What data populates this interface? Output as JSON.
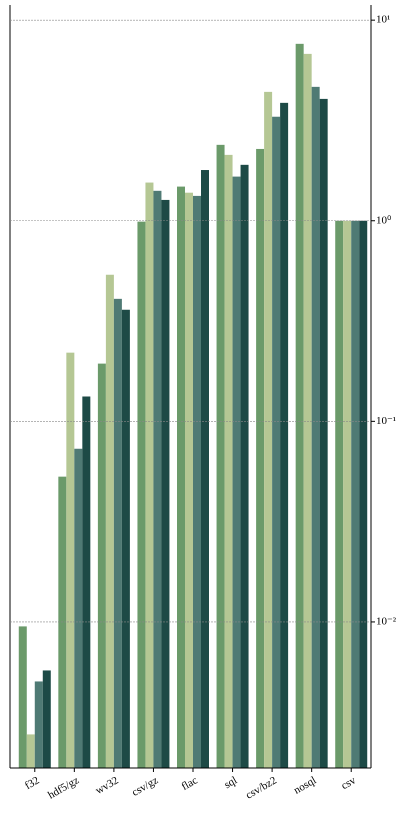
{
  "chart_data": {
    "type": "bar",
    "categories": [
      "f32",
      "hdf5/gz",
      "wv32",
      "csv/gz",
      "flac",
      "sql",
      "csv/bz2",
      "nosql",
      "csv"
    ],
    "series": [
      {
        "color": "#6b9a6a",
        "values": [
          0.0095,
          0.053,
          0.194,
          0.99,
          1.48,
          2.39,
          2.28,
          7.62,
          1
        ]
      },
      {
        "color": "#b5c794",
        "values": [
          0.00275,
          0.22,
          0.538,
          1.55,
          1.38,
          2.13,
          4.39,
          6.79,
          1
        ]
      },
      {
        "color": "#4f7a74",
        "values": [
          0.00505,
          0.073,
          0.408,
          1.41,
          1.33,
          1.66,
          3.3,
          4.65,
          1
        ]
      },
      {
        "color": "#1d4a46",
        "values": [
          0.00573,
          0.133,
          0.36,
          1.27,
          1.79,
          1.9,
          3.87,
          4.05,
          1
        ]
      }
    ],
    "ylim": [
      0.00187,
      11.9
    ],
    "log_y": true,
    "grid": true,
    "yticks": [
      {
        "value": 0.01,
        "label": "10⁻²"
      },
      {
        "value": 0.1,
        "label": "10⁻¹"
      },
      {
        "value": 1,
        "label": "10⁰"
      },
      {
        "value": 10,
        "label": "10¹"
      }
    ]
  }
}
